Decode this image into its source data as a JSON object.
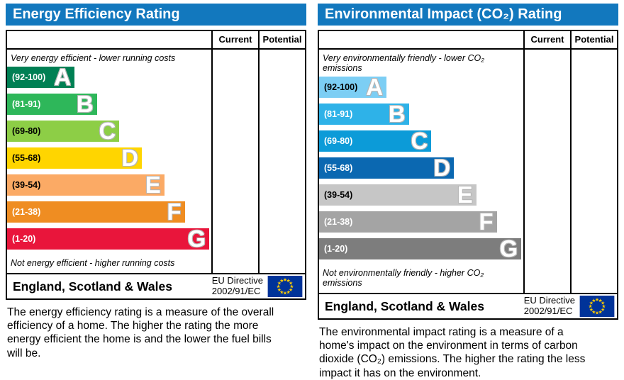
{
  "colors": {
    "header_bg": "#1278be",
    "border": "#000000",
    "band_letter": "#ffffff",
    "eu_flag_bg": "#003399",
    "eu_star": "#ffcc00"
  },
  "panels": [
    {
      "id": "energy-efficiency",
      "title": "Energy Efficiency Rating",
      "columns": [
        "Current",
        "Potential"
      ],
      "top_note": "Very energy efficient - lower running costs",
      "bottom_note": "Not energy efficient - higher running costs",
      "bands": [
        {
          "range": "(92-100)",
          "letter": "A",
          "color": "#008054",
          "text": "#ffffff",
          "width_pct": 33
        },
        {
          "range": "(81-91)",
          "letter": "B",
          "color": "#2eb75a",
          "text": "#ffffff",
          "width_pct": 44
        },
        {
          "range": "(69-80)",
          "letter": "C",
          "color": "#8dce46",
          "text": "#000000",
          "width_pct": 55
        },
        {
          "range": "(55-68)",
          "letter": "D",
          "color": "#ffd500",
          "text": "#000000",
          "width_pct": 66
        },
        {
          "range": "(39-54)",
          "letter": "E",
          "color": "#fbaa65",
          "text": "#000000",
          "width_pct": 77
        },
        {
          "range": "(21-38)",
          "letter": "F",
          "color": "#ef8d22",
          "text": "#ffffff",
          "width_pct": 87
        },
        {
          "range": "(1-20)",
          "letter": "G",
          "color": "#e9153b",
          "text": "#ffffff",
          "width_pct": 99
        }
      ],
      "footer": {
        "region": "England, Scotland & Wales",
        "directive_line1": "EU Directive",
        "directive_line2": "2002/91/EC"
      },
      "description": "The energy efficiency rating is a measure of the overall efficiency of a home. The higher the rating the more energy efficient the home is and the lower the fuel bills will be."
    },
    {
      "id": "environmental-impact",
      "title": "Environmental Impact (CO₂) Rating",
      "columns": [
        "Current",
        "Potential"
      ],
      "top_note": "Very environmentally friendly - lower CO₂ emissions",
      "bottom_note": "Not environmentally friendly - higher CO₂ emissions",
      "bands": [
        {
          "range": "(92-100)",
          "letter": "A",
          "color": "#7ccef4",
          "text": "#000000",
          "width_pct": 33
        },
        {
          "range": "(81-91)",
          "letter": "B",
          "color": "#2eb2e8",
          "text": "#ffffff",
          "width_pct": 44
        },
        {
          "range": "(69-80)",
          "letter": "C",
          "color": "#0c9bd8",
          "text": "#ffffff",
          "width_pct": 55
        },
        {
          "range": "(55-68)",
          "letter": "D",
          "color": "#0b68b1",
          "text": "#ffffff",
          "width_pct": 66
        },
        {
          "range": "(39-54)",
          "letter": "E",
          "color": "#c6c6c6",
          "text": "#000000",
          "width_pct": 77
        },
        {
          "range": "(21-38)",
          "letter": "F",
          "color": "#a4a4a4",
          "text": "#ffffff",
          "width_pct": 87
        },
        {
          "range": "(1-20)",
          "letter": "G",
          "color": "#7d7d7d",
          "text": "#ffffff",
          "width_pct": 99
        }
      ],
      "footer": {
        "region": "England, Scotland & Wales",
        "directive_line1": "EU Directive",
        "directive_line2": "2002/91/EC"
      },
      "description": "The environmental impact rating is a measure of a home's impact on the environment in terms of carbon dioxide (CO₂) emissions. The higher the rating the less impact it has on the environment."
    }
  ],
  "chart_data": [
    {
      "type": "bar",
      "title": "Energy Efficiency Rating",
      "categories": [
        "A",
        "B",
        "C",
        "D",
        "E",
        "F",
        "G"
      ],
      "band_ranges": [
        "92-100",
        "81-91",
        "69-80",
        "55-68",
        "39-54",
        "21-38",
        "1-20"
      ],
      "band_colors": [
        "#008054",
        "#2eb75a",
        "#8dce46",
        "#ffd500",
        "#fbaa65",
        "#ef8d22",
        "#e9153b"
      ],
      "relative_bar_lengths_pct": [
        33,
        44,
        55,
        66,
        77,
        87,
        99
      ],
      "current_rating": null,
      "potential_rating": null,
      "annotations": [
        "Very energy efficient - lower running costs",
        "Not energy efficient - higher running costs"
      ],
      "legend_position": "none",
      "notes": "Current and Potential columns are empty (no rating markers shown)"
    },
    {
      "type": "bar",
      "title": "Environmental Impact (CO₂) Rating",
      "categories": [
        "A",
        "B",
        "C",
        "D",
        "E",
        "F",
        "G"
      ],
      "band_ranges": [
        "92-100",
        "81-91",
        "69-80",
        "55-68",
        "39-54",
        "21-38",
        "1-20"
      ],
      "band_colors": [
        "#7ccef4",
        "#2eb2e8",
        "#0c9bd8",
        "#0b68b1",
        "#c6c6c6",
        "#a4a4a4",
        "#7d7d7d"
      ],
      "relative_bar_lengths_pct": [
        33,
        44,
        55,
        66,
        77,
        87,
        99
      ],
      "current_rating": null,
      "potential_rating": null,
      "annotations": [
        "Very environmentally friendly - lower CO₂ emissions",
        "Not environmentally friendly - higher CO₂ emissions"
      ],
      "legend_position": "none",
      "notes": "Current and Potential columns are empty (no rating markers shown)"
    }
  ]
}
